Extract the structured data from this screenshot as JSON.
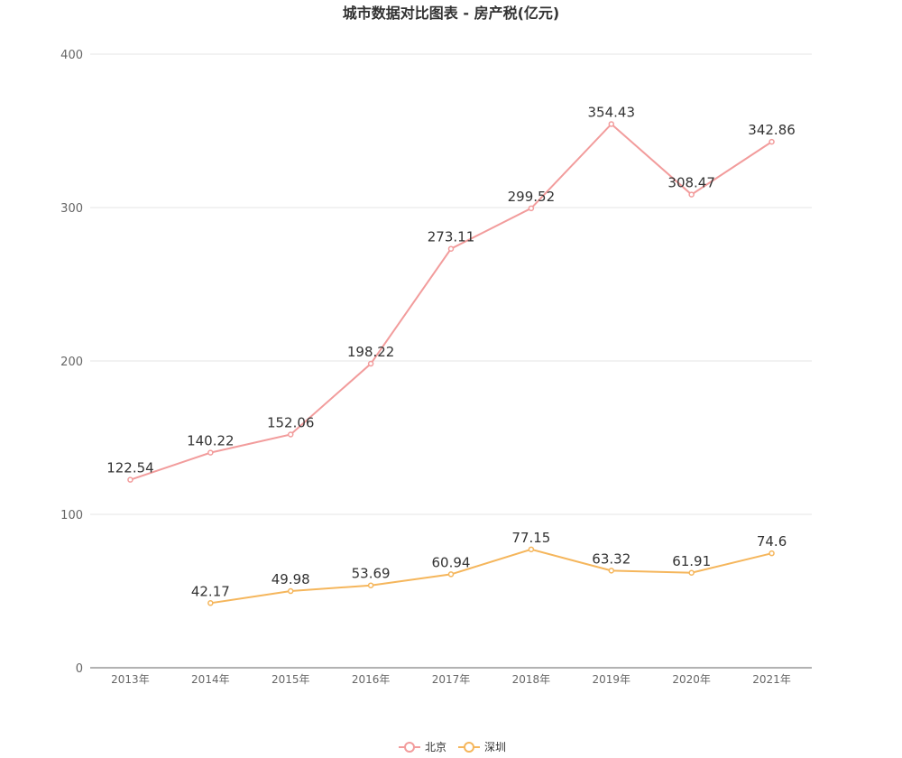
{
  "chart_data": {
    "type": "line",
    "title": "城市数据对比图表 - 房产税(亿元)",
    "categories": [
      "2013年",
      "2014年",
      "2015年",
      "2016年",
      "2017年",
      "2018年",
      "2019年",
      "2020年",
      "2021年"
    ],
    "ylim": [
      0,
      400
    ],
    "yticks": [
      0,
      100,
      200,
      300,
      400
    ],
    "grid": true,
    "legend": "bottom-center",
    "series": [
      {
        "name": "北京",
        "color": "#f29c9c",
        "values": [
          122.54,
          140.22,
          152.06,
          198.22,
          273.11,
          299.52,
          354.43,
          308.47,
          342.86
        ],
        "labels": [
          "122.54",
          "140.22",
          "152.06",
          "198.22",
          "273.11",
          "299.52",
          "354.43",
          "308.47",
          "342.86"
        ]
      },
      {
        "name": "深圳",
        "color": "#f5b65c",
        "values": [
          null,
          42.17,
          49.98,
          53.69,
          60.94,
          77.15,
          63.32,
          61.91,
          74.6
        ],
        "labels": [
          "",
          "42.17",
          "49.98",
          "53.69",
          "60.94",
          "77.15",
          "63.32",
          "61.91",
          "74.6"
        ]
      }
    ]
  }
}
